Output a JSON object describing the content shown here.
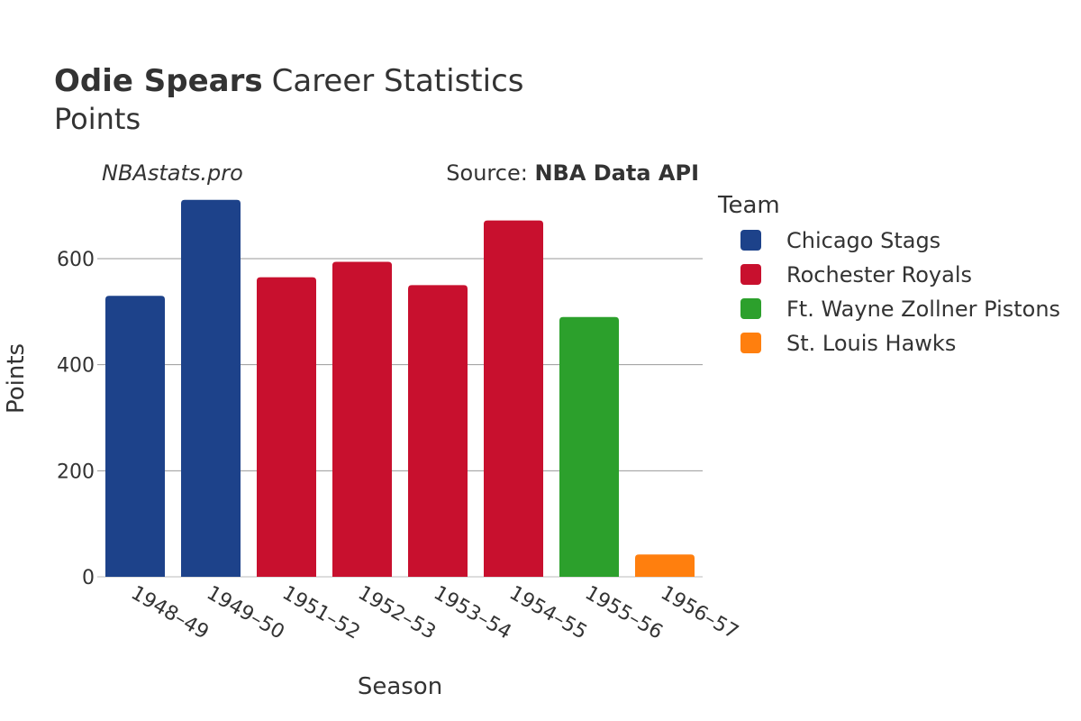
{
  "header": {
    "title_bold": "Odie Spears",
    "title_rest": "Career Statistics",
    "subtitle": "Points"
  },
  "watermark": "NBAstats.pro",
  "source": {
    "prefix": "Source: ",
    "name": "NBA Data API"
  },
  "legend": {
    "title": "Team",
    "items": [
      {
        "name": "Chicago Stags",
        "color": "#1d428a"
      },
      {
        "name": "Rochester Royals",
        "color": "#c8102e"
      },
      {
        "name": "Ft. Wayne Zollner Pistons",
        "color": "#2ca02c"
      },
      {
        "name": "St. Louis Hawks",
        "color": "#ff7f0e"
      }
    ]
  },
  "chart_data": {
    "type": "bar",
    "title": "Odie Spears Career Statistics",
    "subtitle": "Points",
    "xlabel": "Season",
    "ylabel": "Points",
    "categories": [
      "1948–49",
      "1949–50",
      "1951–52",
      "1952–53",
      "1953–54",
      "1954–55",
      "1955–56",
      "1956–57"
    ],
    "values": [
      530,
      711,
      565,
      594,
      550,
      672,
      490,
      42
    ],
    "teams": [
      "Chicago Stags",
      "Chicago Stags",
      "Rochester Royals",
      "Rochester Royals",
      "Rochester Royals",
      "Rochester Royals",
      "Ft. Wayne Zollner Pistons",
      "St. Louis Hawks"
    ],
    "ylim": [
      0,
      760
    ],
    "yticks": [
      0,
      200,
      400,
      600
    ],
    "grid": true,
    "legend_position": "right"
  }
}
